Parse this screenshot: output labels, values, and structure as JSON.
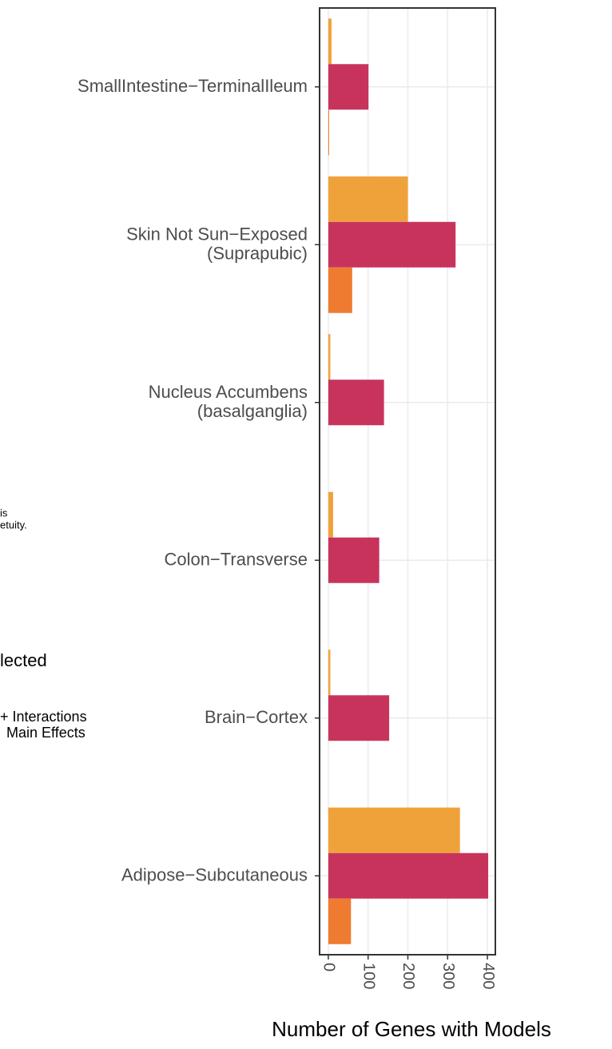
{
  "chart_data": {
    "type": "bar",
    "orientation": "horizontal",
    "categories": [
      "SmallIntestine−TerminalIleum",
      "Skin Not Sun−Exposed\n(Suprapubic)",
      "Nucleus Accumbens\n(basalganglia)",
      "Colon−Transverse",
      "Brain−Cortex",
      "Adipose−Subcutaneous"
    ],
    "series": [
      {
        "color": "#f0a23a",
        "values": [
          8,
          200,
          5,
          12,
          5,
          331
        ]
      },
      {
        "color": "#c8335c",
        "values": [
          101,
          320,
          140,
          128,
          153,
          402
        ]
      },
      {
        "color": "#ee7b30",
        "values": [
          2,
          60,
          0,
          0,
          0,
          57
        ]
      }
    ],
    "xlim": [
      -22,
      420
    ],
    "xticks": [
      0,
      100,
      200,
      300,
      400
    ],
    "xlabel": "Number of Genes with Models",
    "grid": true,
    "fragments": [
      "is",
      "etuity.",
      "lected",
      "+ Interactions",
      "Main Effects"
    ]
  }
}
